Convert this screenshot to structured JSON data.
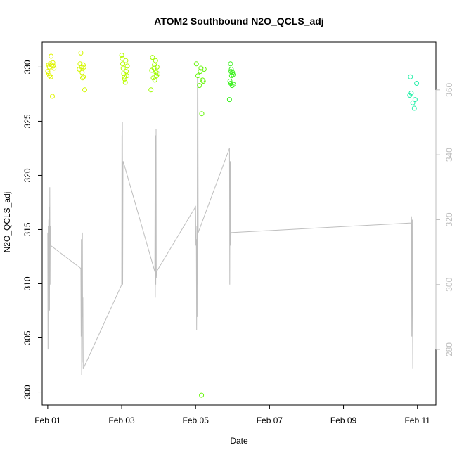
{
  "chart_data": {
    "type": "scatter",
    "title": "ATOM2 Southbound N2O_QCLS_adj",
    "xlabel": "Date",
    "ylabel": "N2O_QCLS_adj",
    "x_axis": {
      "type": "date",
      "range": [
        "2016-01-31T20:24",
        "2016-02-11T12:00"
      ],
      "ticks": [
        {
          "value": "2016-02-01",
          "label": "Feb 01"
        },
        {
          "value": "2016-02-03",
          "label": "Feb 03"
        },
        {
          "value": "2016-02-05",
          "label": "Feb 05"
        },
        {
          "value": "2016-02-07",
          "label": "Feb 07"
        },
        {
          "value": "2016-02-09",
          "label": "Feb 09"
        },
        {
          "value": "2016-02-11",
          "label": "Feb 11"
        }
      ]
    },
    "y_axis_left": {
      "range": [
        298.8,
        332.3
      ],
      "ticks": [
        300,
        305,
        310,
        315,
        320,
        325,
        330
      ]
    },
    "y_axis_right": {
      "color": "#bebebe",
      "range": [
        262.9,
        374.7
      ],
      "ticks": [
        280,
        300,
        320,
        340,
        360
      ]
    },
    "grid": false,
    "scatter_series": [
      {
        "color": "#e0f500",
        "points": [
          {
            "x": "2016-02-01T00:00",
            "y": 329.6
          },
          {
            "x": "2016-02-01T00:30",
            "y": 330.2
          },
          {
            "x": "2016-02-01T00:45",
            "y": 329.4
          },
          {
            "x": "2016-02-01T01:00",
            "y": 330.0
          },
          {
            "x": "2016-02-01T01:30",
            "y": 330.3
          },
          {
            "x": "2016-02-01T02:00",
            "y": 329.1
          },
          {
            "x": "2016-02-01T02:10",
            "y": 331.0
          },
          {
            "x": "2016-02-01T02:30",
            "y": 330.2
          },
          {
            "x": "2016-02-01T03:00",
            "y": 327.3
          },
          {
            "x": "2016-02-01T03:20",
            "y": 330.4
          },
          {
            "x": "2016-02-01T03:40",
            "y": 330.1
          },
          {
            "x": "2016-02-01T04:00",
            "y": 329.9
          },
          {
            "x": "2016-02-01T01:15",
            "y": 329.2
          }
        ]
      },
      {
        "color": "#d4f700",
        "points": [
          {
            "x": "2016-02-01T20:30",
            "y": 329.8
          },
          {
            "x": "2016-02-01T21:00",
            "y": 330.3
          },
          {
            "x": "2016-02-01T21:30",
            "y": 331.3
          },
          {
            "x": "2016-02-01T22:00",
            "y": 330.0
          },
          {
            "x": "2016-02-01T22:20",
            "y": 329.5
          },
          {
            "x": "2016-02-01T22:40",
            "y": 329.0
          },
          {
            "x": "2016-02-01T23:00",
            "y": 330.2
          },
          {
            "x": "2016-02-01T23:30",
            "y": 330.0
          },
          {
            "x": "2016-02-02T00:00",
            "y": 327.9
          },
          {
            "x": "2016-02-01T23:10",
            "y": 329.1
          }
        ]
      },
      {
        "color": "#b8fb00",
        "points": [
          {
            "x": "2016-02-03T00:00",
            "y": 331.1
          },
          {
            "x": "2016-02-03T00:20",
            "y": 330.8
          },
          {
            "x": "2016-02-03T00:40",
            "y": 330.3
          },
          {
            "x": "2016-02-03T01:00",
            "y": 329.9
          },
          {
            "x": "2016-02-03T01:20",
            "y": 329.4
          },
          {
            "x": "2016-02-03T01:40",
            "y": 329.1
          },
          {
            "x": "2016-02-03T02:00",
            "y": 328.9
          },
          {
            "x": "2016-02-03T02:20",
            "y": 328.6
          },
          {
            "x": "2016-02-03T02:40",
            "y": 330.6
          },
          {
            "x": "2016-02-03T03:00",
            "y": 329.6
          },
          {
            "x": "2016-02-03T03:20",
            "y": 329.2
          },
          {
            "x": "2016-02-03T03:40",
            "y": 330.1
          }
        ]
      },
      {
        "color": "#9ffb00",
        "points": [
          {
            "x": "2016-02-03T19:30",
            "y": 329.7
          },
          {
            "x": "2016-02-03T20:00",
            "y": 330.9
          },
          {
            "x": "2016-02-03T20:30",
            "y": 329.0
          },
          {
            "x": "2016-02-03T21:00",
            "y": 329.9
          },
          {
            "x": "2016-02-03T21:30",
            "y": 328.8
          },
          {
            "x": "2016-02-03T22:00",
            "y": 330.6
          },
          {
            "x": "2016-02-03T22:20",
            "y": 329.5
          },
          {
            "x": "2016-02-03T22:40",
            "y": 329.2
          },
          {
            "x": "2016-02-03T23:00",
            "y": 330.0
          },
          {
            "x": "2016-02-03T23:30",
            "y": 329.4
          },
          {
            "x": "2016-02-03T19:00",
            "y": 327.9
          },
          {
            "x": "2016-02-03T21:15",
            "y": 330.2
          }
        ]
      },
      {
        "color": "#66f50a",
        "points": [
          {
            "x": "2016-02-05T00:30",
            "y": 330.3
          },
          {
            "x": "2016-02-05T01:30",
            "y": 329.2
          },
          {
            "x": "2016-02-05T02:30",
            "y": 328.3
          },
          {
            "x": "2016-02-05T03:00",
            "y": 329.6
          },
          {
            "x": "2016-02-05T03:30",
            "y": 329.9
          },
          {
            "x": "2016-02-05T04:00",
            "y": 325.7
          },
          {
            "x": "2016-02-05T04:30",
            "y": 328.8
          },
          {
            "x": "2016-02-05T05:00",
            "y": 328.7
          },
          {
            "x": "2016-02-05T05:30",
            "y": 329.8
          },
          {
            "x": "2016-02-05T03:50",
            "y": 299.7
          }
        ]
      },
      {
        "color": "#3bf11e",
        "points": [
          {
            "x": "2016-02-05T22:00",
            "y": 327.0
          },
          {
            "x": "2016-02-05T22:20",
            "y": 328.7
          },
          {
            "x": "2016-02-05T22:40",
            "y": 330.3
          },
          {
            "x": "2016-02-05T23:00",
            "y": 329.6
          },
          {
            "x": "2016-02-05T23:20",
            "y": 329.2
          },
          {
            "x": "2016-02-05T23:40",
            "y": 328.3
          },
          {
            "x": "2016-02-06T00:00",
            "y": 329.5
          },
          {
            "x": "2016-02-06T00:20",
            "y": 329.3
          },
          {
            "x": "2016-02-06T00:40",
            "y": 328.4
          },
          {
            "x": "2016-02-05T23:10",
            "y": 329.8
          },
          {
            "x": "2016-02-05T22:50",
            "y": 328.5
          }
        ]
      },
      {
        "color": "#22f0a8",
        "points": [
          {
            "x": "2016-02-10T19:00",
            "y": 327.4
          },
          {
            "x": "2016-02-10T19:30",
            "y": 329.1
          },
          {
            "x": "2016-02-10T20:00",
            "y": 327.6
          },
          {
            "x": "2016-02-10T21:00",
            "y": 326.7
          },
          {
            "x": "2016-02-10T22:00",
            "y": 326.2
          },
          {
            "x": "2016-02-10T22:30",
            "y": 327.0
          },
          {
            "x": "2016-02-10T23:30",
            "y": 328.5
          }
        ]
      }
    ],
    "line_series": {
      "color": "#bebebe",
      "axis": "right",
      "points": [
        {
          "x": "2016-02-01T00:00",
          "y": 316
        },
        {
          "x": "2016-02-01T00:10",
          "y": 280
        },
        {
          "x": "2016-02-01T00:20",
          "y": 318
        },
        {
          "x": "2016-02-01T00:30",
          "y": 308
        },
        {
          "x": "2016-02-01T00:40",
          "y": 320
        },
        {
          "x": "2016-02-01T00:50",
          "y": 298
        },
        {
          "x": "2016-02-01T01:00",
          "y": 324
        },
        {
          "x": "2016-02-01T01:10",
          "y": 292
        },
        {
          "x": "2016-02-01T01:20",
          "y": 330
        },
        {
          "x": "2016-02-01T01:30",
          "y": 300
        },
        {
          "x": "2016-02-01T01:40",
          "y": 318
        },
        {
          "x": "2016-02-01T01:50",
          "y": 314
        },
        {
          "x": "2016-02-01T02:00",
          "y": 312
        },
        {
          "x": "2016-02-01T21:30",
          "y": 305
        },
        {
          "x": "2016-02-01T21:40",
          "y": 284
        },
        {
          "x": "2016-02-01T21:50",
          "y": 314
        },
        {
          "x": "2016-02-01T22:00",
          "y": 272
        },
        {
          "x": "2016-02-01T22:10",
          "y": 310
        },
        {
          "x": "2016-02-01T22:20",
          "y": 276
        },
        {
          "x": "2016-02-01T22:30",
          "y": 316
        },
        {
          "x": "2016-02-01T22:40",
          "y": 290
        },
        {
          "x": "2016-02-01T22:50",
          "y": 296
        },
        {
          "x": "2016-02-01T23:00",
          "y": 274
        },
        {
          "x": "2016-02-03T00:00",
          "y": 300
        },
        {
          "x": "2016-02-03T00:10",
          "y": 346
        },
        {
          "x": "2016-02-03T00:20",
          "y": 300
        },
        {
          "x": "2016-02-03T00:30",
          "y": 350
        },
        {
          "x": "2016-02-03T00:40",
          "y": 300
        },
        {
          "x": "2016-02-03T00:50",
          "y": 336
        },
        {
          "x": "2016-02-03T01:00",
          "y": 338
        },
        {
          "x": "2016-02-03T21:30",
          "y": 304
        },
        {
          "x": "2016-02-03T21:40",
          "y": 328
        },
        {
          "x": "2016-02-03T21:50",
          "y": 296
        },
        {
          "x": "2016-02-03T22:00",
          "y": 346
        },
        {
          "x": "2016-02-03T22:10",
          "y": 300
        },
        {
          "x": "2016-02-03T22:20",
          "y": 348
        },
        {
          "x": "2016-02-03T22:30",
          "y": 302
        },
        {
          "x": "2016-02-03T22:40",
          "y": 304
        },
        {
          "x": "2016-02-05T00:00",
          "y": 324
        },
        {
          "x": "2016-02-05T00:10",
          "y": 312
        },
        {
          "x": "2016-02-05T00:20",
          "y": 314
        },
        {
          "x": "2016-02-05T00:30",
          "y": 312
        },
        {
          "x": "2016-02-05T00:40",
          "y": 286
        },
        {
          "x": "2016-02-05T00:50",
          "y": 318
        },
        {
          "x": "2016-02-05T01:00",
          "y": 290
        },
        {
          "x": "2016-02-05T01:10",
          "y": 364
        },
        {
          "x": "2016-02-05T01:20",
          "y": 300
        },
        {
          "x": "2016-02-05T01:30",
          "y": 362
        },
        {
          "x": "2016-02-05T01:40",
          "y": 316
        },
        {
          "x": "2016-02-05T22:00",
          "y": 342
        },
        {
          "x": "2016-02-05T22:10",
          "y": 300
        },
        {
          "x": "2016-02-05T22:20",
          "y": 338
        },
        {
          "x": "2016-02-05T22:30",
          "y": 312
        },
        {
          "x": "2016-02-05T22:40",
          "y": 338
        },
        {
          "x": "2016-02-05T22:50",
          "y": 312
        },
        {
          "x": "2016-02-05T23:00",
          "y": 316
        },
        {
          "x": "2016-02-10T20:00",
          "y": 319
        },
        {
          "x": "2016-02-10T20:10",
          "y": 321
        },
        {
          "x": "2016-02-10T20:20",
          "y": 284
        },
        {
          "x": "2016-02-10T20:30",
          "y": 312
        },
        {
          "x": "2016-02-10T20:40",
          "y": 320
        },
        {
          "x": "2016-02-10T20:50",
          "y": 290
        },
        {
          "x": "2016-02-10T21:00",
          "y": 274
        },
        {
          "x": "2016-02-10T21:10",
          "y": 288
        }
      ]
    }
  }
}
